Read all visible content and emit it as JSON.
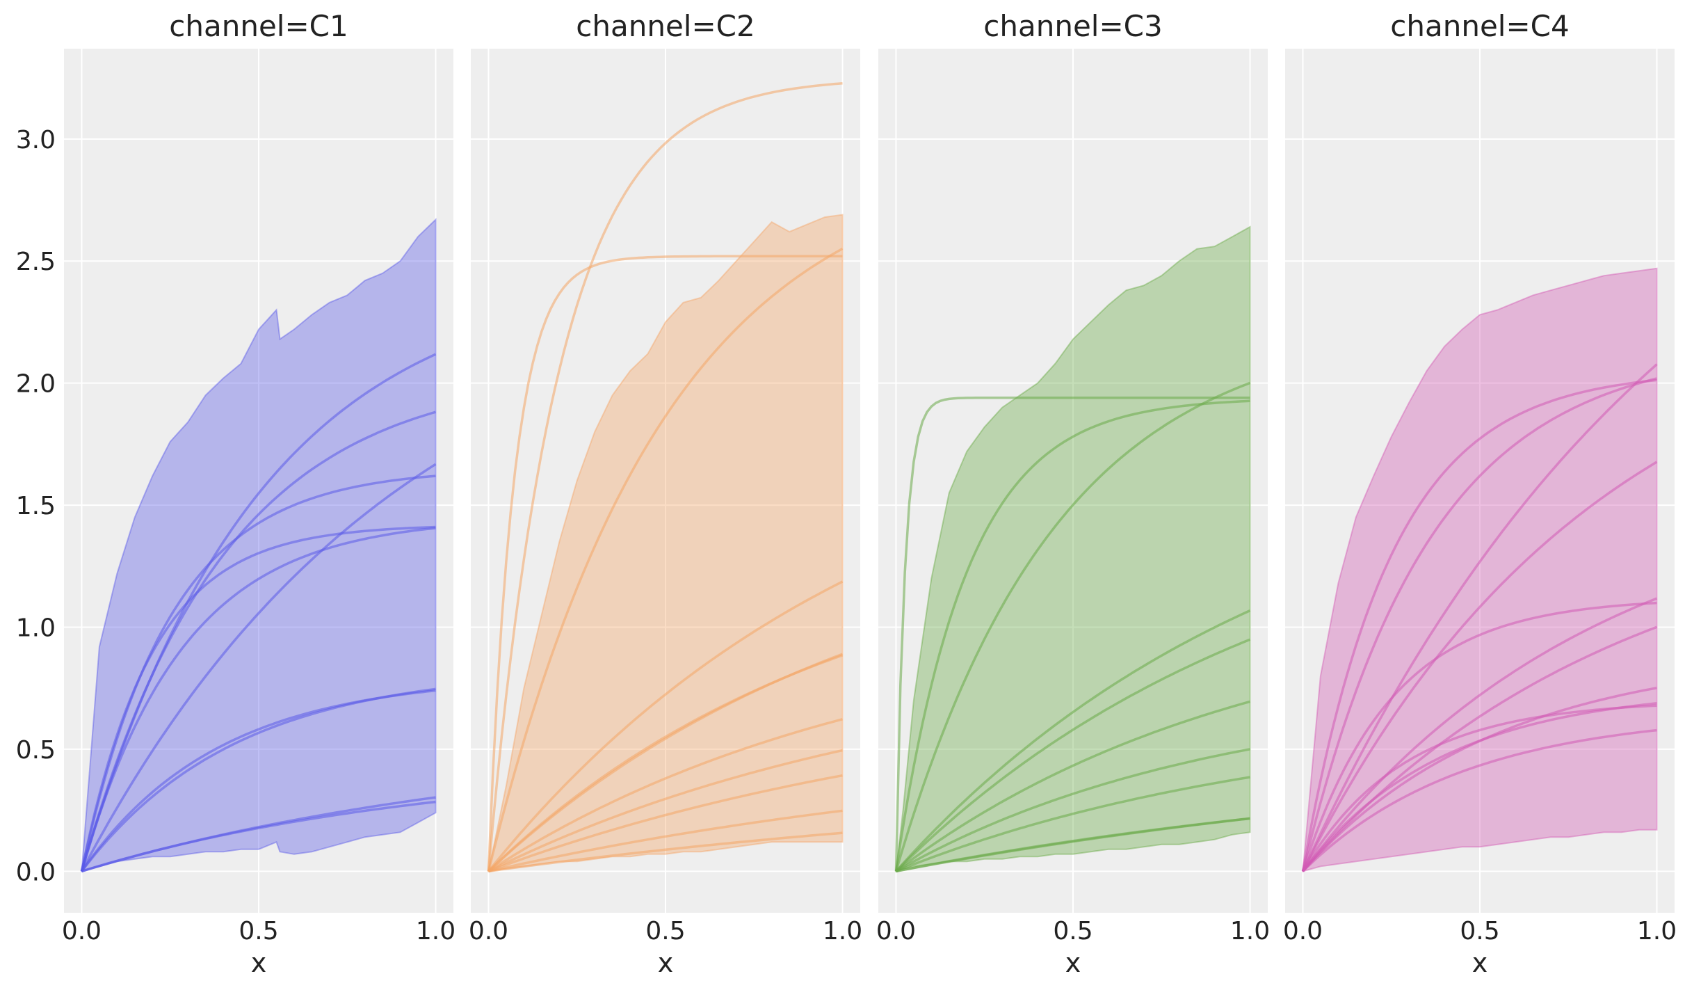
{
  "chart_data": {
    "type": "line",
    "xlim": [
      -0.05,
      1.05
    ],
    "ylim": [
      -0.17,
      3.37
    ],
    "x_ticks": [
      0.0,
      0.5,
      1.0
    ],
    "y_ticks": [
      0.0,
      0.5,
      1.0,
      1.5,
      2.0,
      2.5,
      3.0
    ],
    "x_tick_labels": [
      "0.0",
      "0.5",
      "1.0"
    ],
    "y_tick_labels": [
      "0.0",
      "0.5",
      "1.0",
      "1.5",
      "2.0",
      "2.5",
      "3.0"
    ],
    "xlabel": "x",
    "grid": true,
    "panels": [
      {
        "title": "channel=C1",
        "color": "#5a5ae8",
        "band_x": [
          0,
          0.05,
          0.1,
          0.15,
          0.2,
          0.25,
          0.3,
          0.35,
          0.4,
          0.45,
          0.5,
          0.55,
          0.56,
          0.6,
          0.65,
          0.7,
          0.75,
          0.8,
          0.85,
          0.9,
          0.95,
          1.0
        ],
        "band_upper": [
          0,
          0.92,
          1.22,
          1.45,
          1.62,
          1.76,
          1.84,
          1.95,
          2.02,
          2.08,
          2.22,
          2.3,
          2.18,
          2.22,
          2.28,
          2.33,
          2.36,
          2.42,
          2.45,
          2.5,
          2.6,
          2.67
        ],
        "band_lower": [
          0,
          0.02,
          0.04,
          0.05,
          0.06,
          0.06,
          0.07,
          0.08,
          0.08,
          0.09,
          0.09,
          0.12,
          0.08,
          0.07,
          0.08,
          0.1,
          0.12,
          0.14,
          0.15,
          0.16,
          0.2,
          0.24
        ],
        "series": [
          {
            "ymax": 2.45,
            "k": 2.0
          },
          {
            "ymax": 2.05,
            "k": 2.5
          },
          {
            "ymax": 2.5,
            "k": 1.1
          },
          {
            "ymax": 1.65,
            "k": 4.0
          },
          {
            "ymax": 1.42,
            "k": 5.0
          },
          {
            "ymax": 1.45,
            "k": 3.5
          },
          {
            "ymax": 0.83,
            "k": 2.3
          },
          {
            "ymax": 0.8,
            "k": 2.6
          },
          {
            "ymax": 0.55,
            "k": 0.8
          },
          {
            "ymax": 0.45,
            "k": 1.0
          }
        ]
      },
      {
        "title": "channel=C2",
        "color": "#f4a566",
        "band_x": [
          0,
          0.05,
          0.1,
          0.15,
          0.2,
          0.25,
          0.3,
          0.35,
          0.4,
          0.45,
          0.5,
          0.55,
          0.6,
          0.65,
          0.7,
          0.75,
          0.8,
          0.85,
          0.9,
          0.95,
          1.0
        ],
        "band_upper": [
          0,
          0.35,
          0.75,
          1.05,
          1.35,
          1.6,
          1.8,
          1.95,
          2.05,
          2.12,
          2.25,
          2.33,
          2.35,
          2.42,
          2.5,
          2.58,
          2.66,
          2.62,
          2.65,
          2.68,
          2.69
        ],
        "band_lower": [
          0,
          0.01,
          0.02,
          0.03,
          0.04,
          0.04,
          0.05,
          0.06,
          0.06,
          0.07,
          0.07,
          0.08,
          0.08,
          0.09,
          0.1,
          0.11,
          0.12,
          0.12,
          0.12,
          0.12,
          0.12
        ],
        "series": [
          {
            "ymax": 3.25,
            "k": 5.0
          },
          {
            "ymax": 2.52,
            "k": 14.0
          },
          {
            "ymax": 2.95,
            "k": 2.0
          },
          {
            "ymax": 2.0,
            "k": 0.9
          },
          {
            "ymax": 1.5,
            "k": 0.9
          },
          {
            "ymax": 1.4,
            "k": 1.0
          },
          {
            "ymax": 1.05,
            "k": 0.9
          },
          {
            "ymax": 0.9,
            "k": 0.8
          },
          {
            "ymax": 0.78,
            "k": 0.7
          },
          {
            "ymax": 0.55,
            "k": 0.6
          },
          {
            "ymax": 0.4,
            "k": 0.5
          }
        ]
      },
      {
        "title": "channel=C3",
        "color": "#6aaa48",
        "band_x": [
          0,
          0.02,
          0.05,
          0.1,
          0.15,
          0.2,
          0.25,
          0.3,
          0.35,
          0.4,
          0.45,
          0.5,
          0.55,
          0.6,
          0.65,
          0.7,
          0.75,
          0.8,
          0.85,
          0.9,
          0.95,
          1.0
        ],
        "band_upper": [
          0,
          0.25,
          0.7,
          1.2,
          1.55,
          1.72,
          1.82,
          1.9,
          1.95,
          2.0,
          2.08,
          2.18,
          2.25,
          2.32,
          2.38,
          2.4,
          2.44,
          2.5,
          2.55,
          2.56,
          2.6,
          2.64
        ],
        "band_lower": [
          0,
          0.01,
          0.02,
          0.03,
          0.04,
          0.04,
          0.05,
          0.05,
          0.06,
          0.06,
          0.07,
          0.07,
          0.08,
          0.09,
          0.09,
          0.1,
          0.11,
          0.11,
          0.12,
          0.13,
          0.15,
          0.16
        ],
        "series": [
          {
            "ymax": 1.94,
            "k": 40.0
          },
          {
            "ymax": 1.94,
            "k": 5.0
          },
          {
            "ymax": 2.25,
            "k": 2.2
          },
          {
            "ymax": 1.8,
            "k": 0.9
          },
          {
            "ymax": 1.6,
            "k": 0.9
          },
          {
            "ymax": 1.1,
            "k": 1.0
          },
          {
            "ymax": 0.75,
            "k": 1.1
          },
          {
            "ymax": 0.65,
            "k": 0.9
          },
          {
            "ymax": 0.55,
            "k": 0.5
          },
          {
            "ymax": 0.48,
            "k": 0.6
          }
        ]
      },
      {
        "title": "channel=C4",
        "color": "#d25ab4",
        "band_x": [
          0,
          0.05,
          0.1,
          0.15,
          0.2,
          0.25,
          0.3,
          0.35,
          0.4,
          0.45,
          0.5,
          0.55,
          0.6,
          0.65,
          0.7,
          0.75,
          0.8,
          0.85,
          0.9,
          0.95,
          1.0
        ],
        "band_upper": [
          0,
          0.8,
          1.18,
          1.45,
          1.62,
          1.78,
          1.92,
          2.05,
          2.15,
          2.22,
          2.28,
          2.3,
          2.33,
          2.36,
          2.38,
          2.4,
          2.42,
          2.44,
          2.45,
          2.46,
          2.47
        ],
        "band_lower": [
          0,
          0.02,
          0.03,
          0.04,
          0.05,
          0.06,
          0.07,
          0.08,
          0.09,
          0.1,
          0.1,
          0.11,
          0.12,
          0.13,
          0.14,
          0.14,
          0.15,
          0.16,
          0.16,
          0.17,
          0.17
        ],
        "series": [
          {
            "ymax": 2.05,
            "k": 4.0
          },
          {
            "ymax": 2.15,
            "k": 2.8
          },
          {
            "ymax": 3.5,
            "k": 0.9
          },
          {
            "ymax": 2.4,
            "k": 1.2
          },
          {
            "ymax": 1.6,
            "k": 1.2
          },
          {
            "ymax": 1.12,
            "k": 4.0
          },
          {
            "ymax": 1.5,
            "k": 1.1
          },
          {
            "ymax": 0.9,
            "k": 1.8
          },
          {
            "ymax": 0.7,
            "k": 3.5
          },
          {
            "ymax": 0.75,
            "k": 2.5
          },
          {
            "ymax": 0.65,
            "k": 2.2
          }
        ]
      }
    ]
  }
}
